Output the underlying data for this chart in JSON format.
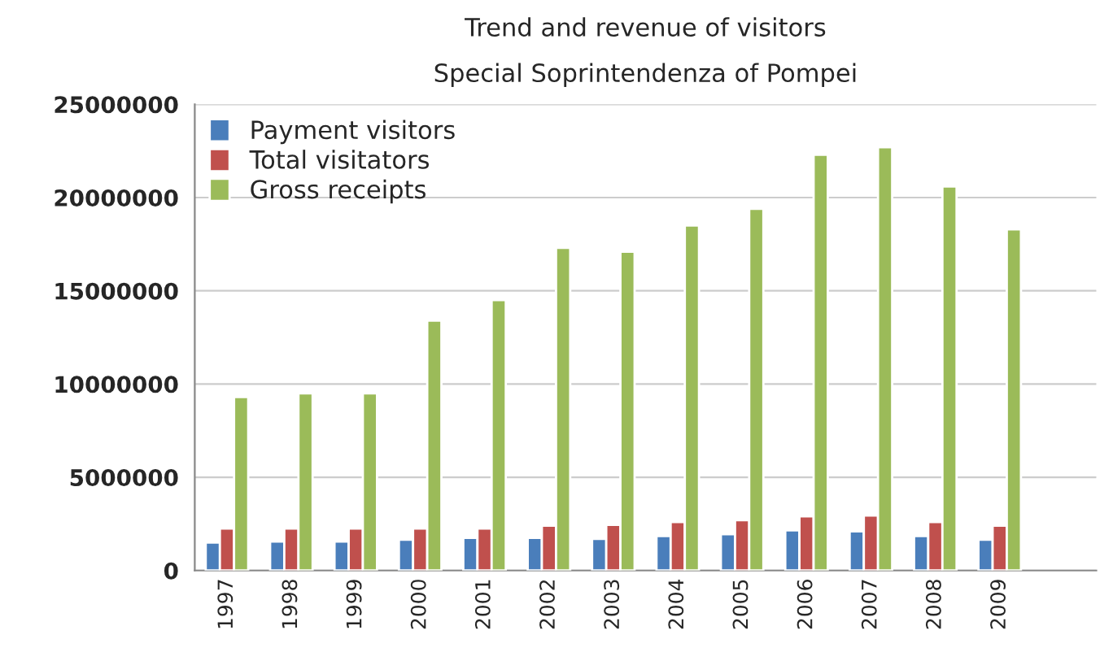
{
  "chart_data": {
    "type": "bar",
    "title": "Trend and revenue of visitors",
    "subtitle": "Special Soprintendenza of Pompei",
    "categories": [
      "1997",
      "1998",
      "1999",
      "2000",
      "2001",
      "2002",
      "2003",
      "2004",
      "2005",
      "2006",
      "2007",
      "2008",
      "2009"
    ],
    "series": [
      {
        "name": "Payment visitors",
        "color": "#4a7ebb",
        "values": [
          1500000,
          1550000,
          1550000,
          1650000,
          1750000,
          1750000,
          1700000,
          1850000,
          1950000,
          2150000,
          2100000,
          1850000,
          1650000
        ]
      },
      {
        "name": "Total visitators",
        "color": "#c0504d",
        "values": [
          2250000,
          2250000,
          2250000,
          2250000,
          2250000,
          2400000,
          2450000,
          2600000,
          2700000,
          2900000,
          2950000,
          2600000,
          2400000
        ]
      },
      {
        "name": "Gross receipts",
        "color": "#9bbb59",
        "values": [
          9300000,
          9500000,
          9500000,
          13400000,
          14500000,
          17300000,
          17100000,
          18500000,
          19400000,
          22300000,
          22700000,
          20600000,
          18300000
        ]
      }
    ],
    "ylim": [
      0,
      25000000
    ],
    "yticks": [
      0,
      5000000,
      10000000,
      15000000,
      20000000,
      25000000
    ],
    "grid": "y",
    "legend": "top left"
  }
}
